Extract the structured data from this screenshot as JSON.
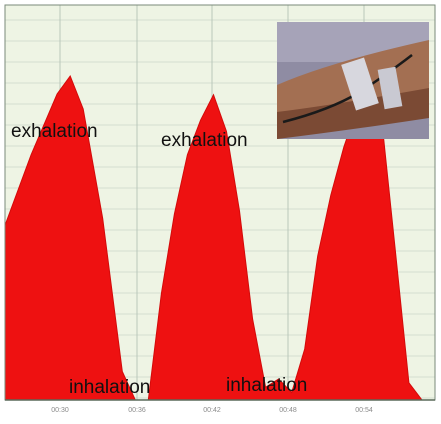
{
  "chart_data": {
    "type": "area",
    "title": "",
    "xlabel": "",
    "ylabel": "",
    "x_tick_labels": [
      "00:30",
      "00:36",
      "00:42",
      "00:48",
      "00:54"
    ],
    "grid": true,
    "series": [
      {
        "color": "#ee1111",
        "x": [
          0,
          2,
          4,
          5,
          6,
          7.5,
          9,
          10,
          11,
          12,
          13,
          14,
          15,
          16,
          17,
          18,
          19,
          20,
          21,
          22,
          23,
          24,
          25,
          26,
          27,
          28,
          29,
          30,
          31,
          32,
          33
        ],
        "values": [
          0.47,
          0.65,
          0.82,
          0.86,
          0.78,
          0.48,
          0.08,
          0.0,
          0.0,
          0.28,
          0.5,
          0.65,
          0.75,
          0.81,
          0.72,
          0.5,
          0.22,
          0.03,
          0.06,
          0.02,
          0.14,
          0.38,
          0.55,
          0.67,
          0.78,
          0.88,
          0.72,
          0.38,
          0.05,
          0.0,
          0.0
        ]
      }
    ],
    "ylim": [
      0,
      1
    ]
  },
  "annotations": {
    "exhalation_1": "exhalation",
    "exhalation_2": "exhalation",
    "inhalation_1": "inhalation",
    "inhalation_2": "inhalation"
  },
  "inset_photo": {
    "description_icon": "arm-breathing-sensor-photo"
  },
  "colors": {
    "plot_bg": "#eef4e4",
    "grid": "#b9c7ba",
    "area": "#ee1111",
    "frame": "#7a8a7a"
  }
}
